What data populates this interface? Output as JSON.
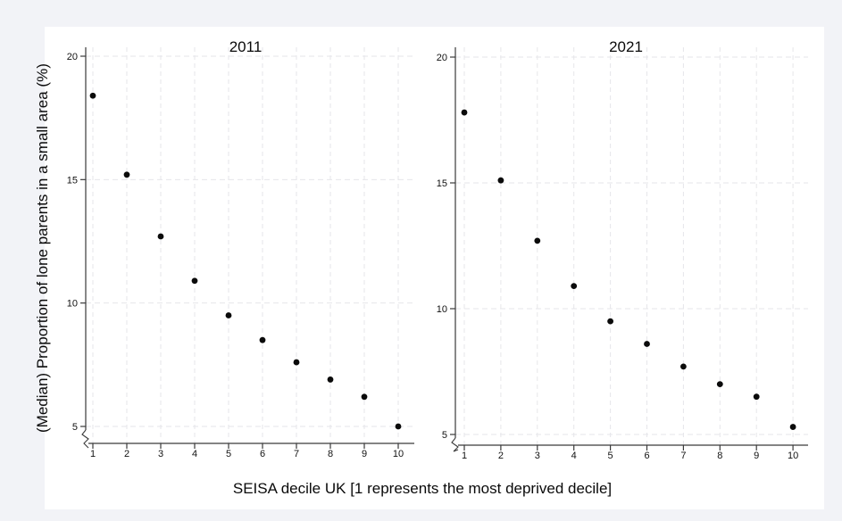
{
  "chart": {
    "ylabel": "(Median) Proportion of lone parents in a small area (%)",
    "xlabel": "SEISA decile UK [1 represents the most deprived decile]"
  },
  "chart_data": [
    {
      "type": "scatter",
      "title": "2011",
      "categories": [
        1,
        2,
        3,
        4,
        5,
        6,
        7,
        8,
        9,
        10
      ],
      "values": [
        18.4,
        15.2,
        12.7,
        10.9,
        9.5,
        8.5,
        7.6,
        6.9,
        6.2,
        5.0
      ],
      "xlabel": "SEISA decile UK [1 represents the most deprived decile]",
      "ylabel": "(Median) Proportion of lone parents in a small area (%)",
      "yticks": [
        5,
        10,
        15,
        20
      ],
      "ylim": [
        4.3,
        20.7
      ],
      "grid": true,
      "axis_break": true,
      "legend": "none",
      "marker_color": "#0b0b0b",
      "grid_color": "#e6e6ea",
      "axis_color": "#3a3a3a"
    },
    {
      "type": "scatter",
      "title": "2021",
      "categories": [
        1,
        2,
        3,
        4,
        5,
        6,
        7,
        8,
        9,
        10
      ],
      "values": [
        17.8,
        15.1,
        12.7,
        10.9,
        9.5,
        8.6,
        7.7,
        7.0,
        6.5,
        5.3
      ],
      "xlabel": "SEISA decile UK [1 represents the most deprived decile]",
      "ylabel": "(Median) Proportion of lone parents in a small area (%)",
      "yticks": [
        5,
        10,
        15,
        20
      ],
      "ylim": [
        4.3,
        20.7
      ],
      "grid": true,
      "axis_break": true,
      "legend": "none",
      "marker_color": "#0b0b0b",
      "grid_color": "#e6e6ea",
      "axis_color": "#3a3a3a"
    }
  ]
}
